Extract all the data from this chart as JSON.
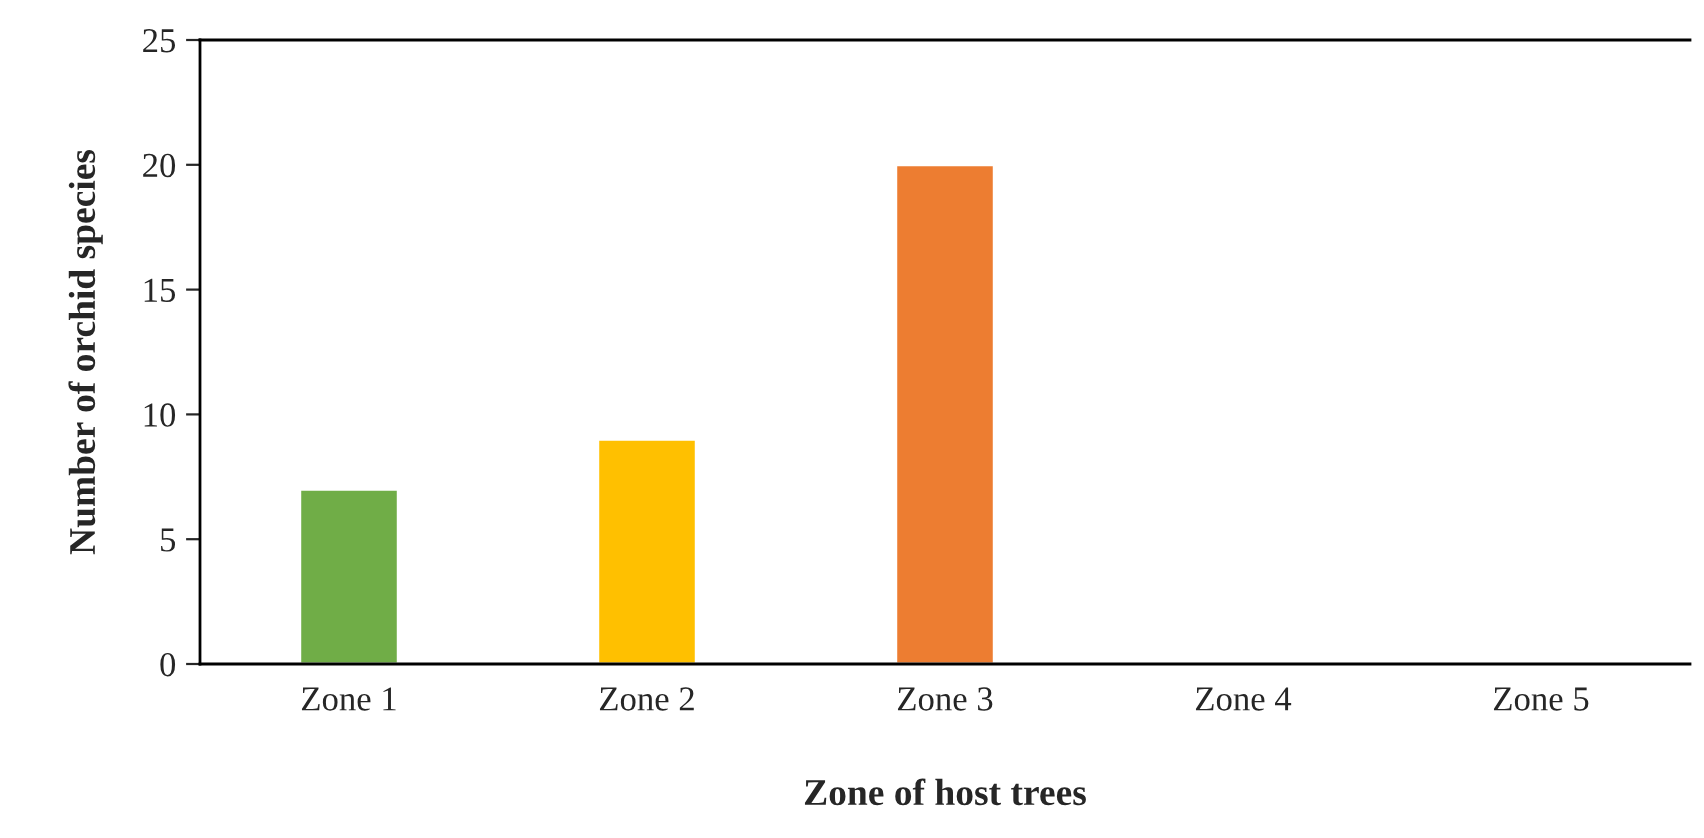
{
  "chart_data": {
    "type": "bar",
    "xlabel": "Zone of host trees",
    "ylabel": "Number of orchid species",
    "categories": [
      "Zone 1",
      "Zone 2",
      "Zone 3",
      "Zone 4",
      "Zone 5"
    ],
    "values": [
      7,
      9,
      20,
      0,
      0
    ],
    "colors": [
      "#70ad47",
      "#ffc000",
      "#ed7d31",
      null,
      null
    ],
    "ylim": [
      0,
      25
    ],
    "yticks": [
      0,
      5,
      10,
      15,
      20,
      25
    ],
    "grid": false,
    "legend": false
  }
}
